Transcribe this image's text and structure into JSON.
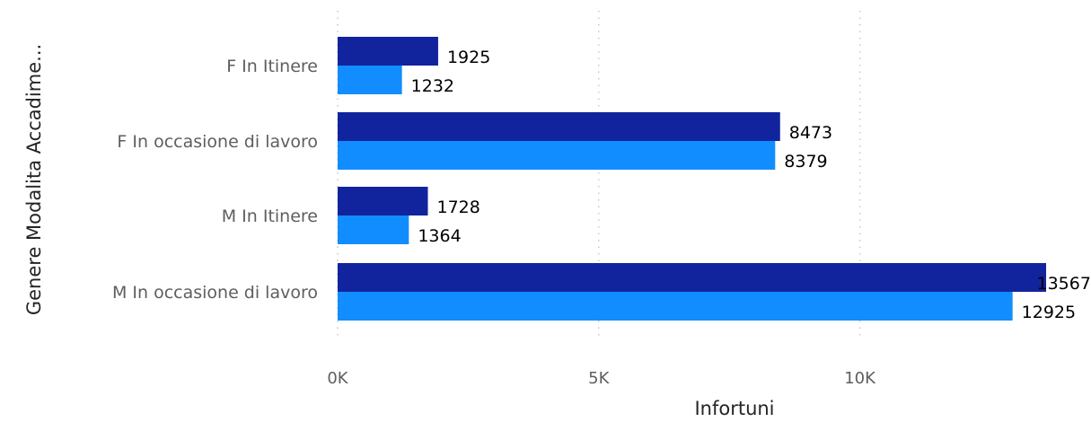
{
  "chart_data": {
    "type": "bar",
    "orientation": "horizontal",
    "categories": [
      "F In Itinere",
      "F In occasione di lavoro",
      "M In Itinere",
      "M In occasione di lavoro"
    ],
    "series": [
      {
        "values": [
          1925,
          8473,
          1728,
          13567
        ],
        "color": "#12239E"
      },
      {
        "values": [
          1232,
          8379,
          1364,
          12925
        ],
        "color": "#118DFF"
      }
    ],
    "xlabel": "Infortuni",
    "ylabel": "Genere Modalita Accadime...",
    "xlim": [
      0,
      13567
    ],
    "x_ticks": [
      0,
      5000,
      10000
    ],
    "x_tick_labels": [
      "0K",
      "5K",
      "10K"
    ],
    "grid": true,
    "data_labels": true
  }
}
